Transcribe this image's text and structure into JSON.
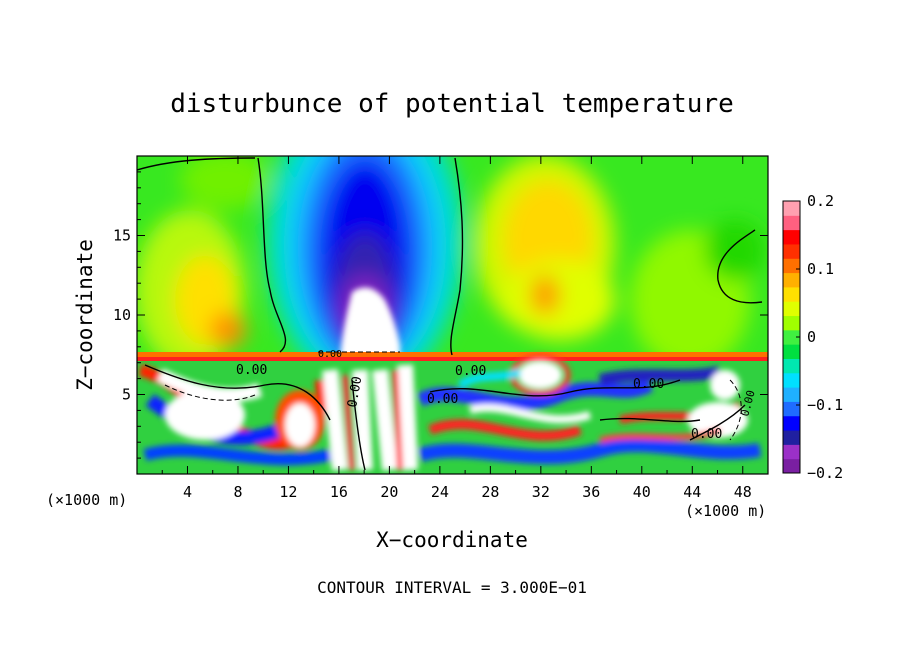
{
  "chart_data": {
    "type": "heatmap",
    "title": "disturbunce of potential temperature",
    "xlabel": "X−coordinate",
    "ylabel": "Z−coordinate",
    "x_unit": "(×1000 m)",
    "z_unit": "(×1000 m)",
    "xlim": [
      0,
      50
    ],
    "ylim": [
      0,
      20
    ],
    "x_ticks": [
      "4",
      "8",
      "12",
      "16",
      "20",
      "24",
      "28",
      "32",
      "36",
      "40",
      "44",
      "48"
    ],
    "y_ticks": [
      "5",
      "10",
      "15"
    ],
    "colorbar": {
      "range": [
        -0.2,
        0.2
      ],
      "ticks": [
        "0.2",
        "0.1",
        "0",
        "−0.1",
        "−0.2"
      ],
      "colors": [
        "#7a1fa2",
        "#9b30c8",
        "#2020a0",
        "#0000ff",
        "#1f6cff",
        "#1fb0ff",
        "#00e0ff",
        "#00e8b0",
        "#00e040",
        "#40f040",
        "#a0ff00",
        "#e0ff00",
        "#ffe000",
        "#ffb000",
        "#ff7000",
        "#ff3000",
        "#ff0000",
        "#ff6080",
        "#ffa0b0"
      ]
    },
    "contour_labels": [
      "0.00",
      "0.00",
      "0.00",
      "0.00",
      "0.00",
      "0.00",
      "0.00",
      "0.00"
    ],
    "contour_interval_text": "CONTOUR INTERVAL = 3.000E−01",
    "field_description_values": {
      "upper_cold_core": {
        "x": 18,
        "z_range": [
          9,
          19
        ],
        "min": -0.2
      },
      "upper_warm_region": {
        "x": 33,
        "z_range": [
          10,
          19
        ],
        "max": 0.12
      },
      "inversion_layer_z": 7.4
    }
  }
}
